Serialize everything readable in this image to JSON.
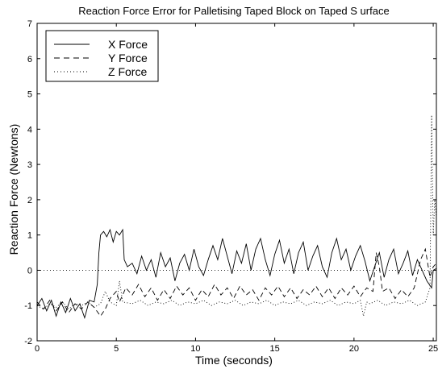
{
  "chart_data": {
    "type": "line",
    "title": "Reaction Force Error for Palletising Taped Block on Taped S urface",
    "xlabel": "Time (seconds)",
    "ylabel": "Reaction Force (Newtons)",
    "xlim": [
      0,
      25.2
    ],
    "ylim": [
      -2,
      7
    ],
    "xticks": [
      0,
      5,
      10,
      15,
      20,
      25
    ],
    "yticks": [
      -2,
      -1,
      0,
      1,
      2,
      3,
      4,
      5,
      6,
      7
    ],
    "grid": false,
    "legend_position": "top-left",
    "reference_line": 0,
    "series": [
      {
        "name": "X Force",
        "style": "solid",
        "points": [
          [
            0,
            -1.0
          ],
          [
            0.3,
            -0.8
          ],
          [
            0.6,
            -1.15
          ],
          [
            0.9,
            -0.85
          ],
          [
            1.2,
            -1.3
          ],
          [
            1.5,
            -0.9
          ],
          [
            1.8,
            -1.2
          ],
          [
            2.1,
            -0.8
          ],
          [
            2.4,
            -1.15
          ],
          [
            2.7,
            -0.95
          ],
          [
            3.0,
            -1.35
          ],
          [
            3.3,
            -0.85
          ],
          [
            3.6,
            -0.9
          ],
          [
            3.8,
            -0.4
          ],
          [
            3.9,
            0.5
          ],
          [
            4.0,
            1.0
          ],
          [
            4.2,
            1.1
          ],
          [
            4.4,
            0.95
          ],
          [
            4.6,
            1.15
          ],
          [
            4.8,
            0.8
          ],
          [
            5.0,
            1.1
          ],
          [
            5.2,
            1.0
          ],
          [
            5.4,
            1.15
          ],
          [
            5.5,
            0.3
          ],
          [
            5.7,
            0.1
          ],
          [
            6.0,
            0.2
          ],
          [
            6.3,
            -0.1
          ],
          [
            6.6,
            0.4
          ],
          [
            6.9,
            0.0
          ],
          [
            7.2,
            0.3
          ],
          [
            7.5,
            -0.2
          ],
          [
            7.8,
            0.5
          ],
          [
            8.1,
            0.1
          ],
          [
            8.4,
            0.35
          ],
          [
            8.7,
            -0.3
          ],
          [
            9.0,
            0.2
          ],
          [
            9.3,
            0.45
          ],
          [
            9.6,
            0.0
          ],
          [
            9.9,
            0.6
          ],
          [
            10.2,
            0.1
          ],
          [
            10.5,
            -0.15
          ],
          [
            10.8,
            0.3
          ],
          [
            11.1,
            0.7
          ],
          [
            11.4,
            0.3
          ],
          [
            11.7,
            0.9
          ],
          [
            12.0,
            0.4
          ],
          [
            12.3,
            -0.1
          ],
          [
            12.6,
            0.55
          ],
          [
            12.9,
            0.2
          ],
          [
            13.2,
            0.75
          ],
          [
            13.5,
            0.0
          ],
          [
            13.8,
            0.6
          ],
          [
            14.1,
            0.9
          ],
          [
            14.4,
            0.3
          ],
          [
            14.7,
            -0.15
          ],
          [
            15.0,
            0.45
          ],
          [
            15.3,
            0.85
          ],
          [
            15.6,
            0.2
          ],
          [
            15.9,
            0.6
          ],
          [
            16.2,
            -0.1
          ],
          [
            16.5,
            0.5
          ],
          [
            16.8,
            0.8
          ],
          [
            17.1,
            0.0
          ],
          [
            17.4,
            0.4
          ],
          [
            17.7,
            0.7
          ],
          [
            18.0,
            0.1
          ],
          [
            18.3,
            -0.2
          ],
          [
            18.6,
            0.5
          ],
          [
            18.9,
            0.9
          ],
          [
            19.2,
            0.3
          ],
          [
            19.5,
            0.6
          ],
          [
            19.8,
            0.0
          ],
          [
            20.1,
            0.4
          ],
          [
            20.4,
            0.7
          ],
          [
            20.7,
            0.25
          ],
          [
            21.0,
            -0.3
          ],
          [
            21.3,
            0.1
          ],
          [
            21.6,
            0.5
          ],
          [
            21.9,
            -0.2
          ],
          [
            22.2,
            0.3
          ],
          [
            22.5,
            0.6
          ],
          [
            22.8,
            -0.1
          ],
          [
            23.1,
            0.2
          ],
          [
            23.4,
            0.55
          ],
          [
            23.7,
            -0.15
          ],
          [
            24.0,
            0.3
          ],
          [
            24.3,
            0.0
          ],
          [
            24.6,
            -0.3
          ],
          [
            24.9,
            -0.5
          ],
          [
            25.0,
            0.0
          ],
          [
            25.2,
            0.05
          ]
        ]
      },
      {
        "name": "Y Force",
        "style": "dashed",
        "points": [
          [
            0,
            -0.9
          ],
          [
            0.4,
            -1.1
          ],
          [
            0.8,
            -0.85
          ],
          [
            1.2,
            -1.15
          ],
          [
            1.6,
            -0.9
          ],
          [
            2.0,
            -1.2
          ],
          [
            2.4,
            -0.95
          ],
          [
            2.8,
            -1.1
          ],
          [
            3.2,
            -0.9
          ],
          [
            3.6,
            -1.05
          ],
          [
            4.0,
            -1.3
          ],
          [
            4.3,
            -1.1
          ],
          [
            4.6,
            -0.8
          ],
          [
            5.0,
            -0.6
          ],
          [
            5.2,
            -0.9
          ],
          [
            5.6,
            -0.5
          ],
          [
            6.0,
            -0.7
          ],
          [
            6.4,
            -0.4
          ],
          [
            6.8,
            -0.75
          ],
          [
            7.2,
            -0.5
          ],
          [
            7.6,
            -0.85
          ],
          [
            8.0,
            -0.55
          ],
          [
            8.4,
            -0.8
          ],
          [
            8.8,
            -0.45
          ],
          [
            9.2,
            -0.7
          ],
          [
            9.6,
            -0.5
          ],
          [
            10.0,
            -0.85
          ],
          [
            10.4,
            -0.55
          ],
          [
            10.8,
            -0.75
          ],
          [
            11.2,
            -0.4
          ],
          [
            11.6,
            -0.7
          ],
          [
            12.0,
            -0.5
          ],
          [
            12.4,
            -0.8
          ],
          [
            12.8,
            -0.45
          ],
          [
            13.2,
            -0.7
          ],
          [
            13.6,
            -0.55
          ],
          [
            14.0,
            -0.85
          ],
          [
            14.4,
            -0.5
          ],
          [
            14.8,
            -0.7
          ],
          [
            15.2,
            -0.45
          ],
          [
            15.6,
            -0.75
          ],
          [
            16.0,
            -0.5
          ],
          [
            16.4,
            -0.8
          ],
          [
            16.8,
            -0.55
          ],
          [
            17.2,
            -0.7
          ],
          [
            17.6,
            -0.45
          ],
          [
            18.0,
            -0.75
          ],
          [
            18.4,
            -0.5
          ],
          [
            18.8,
            -0.8
          ],
          [
            19.2,
            -0.5
          ],
          [
            19.6,
            -0.7
          ],
          [
            20.0,
            -0.45
          ],
          [
            20.4,
            -0.75
          ],
          [
            20.8,
            -0.5
          ],
          [
            21.2,
            -0.6
          ],
          [
            21.4,
            0.5
          ],
          [
            21.6,
            0.1
          ],
          [
            21.8,
            -0.6
          ],
          [
            22.2,
            -0.5
          ],
          [
            22.6,
            -0.8
          ],
          [
            23.0,
            -0.55
          ],
          [
            23.4,
            -0.75
          ],
          [
            23.8,
            -0.5
          ],
          [
            24.2,
            0.3
          ],
          [
            24.5,
            0.6
          ],
          [
            24.8,
            -0.2
          ],
          [
            25.0,
            0.1
          ],
          [
            25.2,
            0.2
          ]
        ]
      },
      {
        "name": "Z Force",
        "style": "dotted",
        "points": [
          [
            0,
            -1.0
          ],
          [
            0.4,
            -1.1
          ],
          [
            0.8,
            -0.95
          ],
          [
            1.2,
            -1.05
          ],
          [
            1.6,
            -0.9
          ],
          [
            2.0,
            -1.1
          ],
          [
            2.4,
            -0.95
          ],
          [
            2.8,
            -1.0
          ],
          [
            3.2,
            -0.9
          ],
          [
            3.6,
            -1.05
          ],
          [
            4.0,
            -0.95
          ],
          [
            4.3,
            -0.6
          ],
          [
            4.6,
            -0.9
          ],
          [
            5.0,
            -1.0
          ],
          [
            5.2,
            -0.3
          ],
          [
            5.4,
            -0.9
          ],
          [
            6.0,
            -0.95
          ],
          [
            6.5,
            -0.85
          ],
          [
            7.0,
            -1.0
          ],
          [
            7.5,
            -0.9
          ],
          [
            8.0,
            -0.95
          ],
          [
            8.5,
            -0.85
          ],
          [
            9.0,
            -1.0
          ],
          [
            9.5,
            -0.9
          ],
          [
            10.0,
            -0.95
          ],
          [
            10.5,
            -0.85
          ],
          [
            11.0,
            -1.0
          ],
          [
            11.5,
            -0.9
          ],
          [
            12.0,
            -0.95
          ],
          [
            12.5,
            -0.85
          ],
          [
            13.0,
            -1.0
          ],
          [
            13.5,
            -0.9
          ],
          [
            14.0,
            -0.95
          ],
          [
            14.5,
            -0.85
          ],
          [
            15.0,
            -1.0
          ],
          [
            15.5,
            -0.9
          ],
          [
            16.0,
            -0.95
          ],
          [
            16.5,
            -0.85
          ],
          [
            17.0,
            -1.0
          ],
          [
            17.5,
            -0.9
          ],
          [
            18.0,
            -0.95
          ],
          [
            18.5,
            -0.85
          ],
          [
            19.0,
            -1.0
          ],
          [
            19.5,
            -0.9
          ],
          [
            20.0,
            -0.95
          ],
          [
            20.4,
            -0.85
          ],
          [
            20.6,
            -1.3
          ],
          [
            20.8,
            -0.9
          ],
          [
            21.0,
            -0.95
          ],
          [
            21.5,
            -0.85
          ],
          [
            22.0,
            -1.0
          ],
          [
            22.5,
            -0.9
          ],
          [
            23.0,
            -0.95
          ],
          [
            23.5,
            -0.85
          ],
          [
            24.0,
            -1.0
          ],
          [
            24.5,
            -0.9
          ],
          [
            24.8,
            -0.5
          ],
          [
            24.9,
            4.4
          ],
          [
            25.0,
            1.0
          ],
          [
            25.1,
            2.0
          ],
          [
            25.2,
            1.5
          ]
        ]
      }
    ]
  }
}
